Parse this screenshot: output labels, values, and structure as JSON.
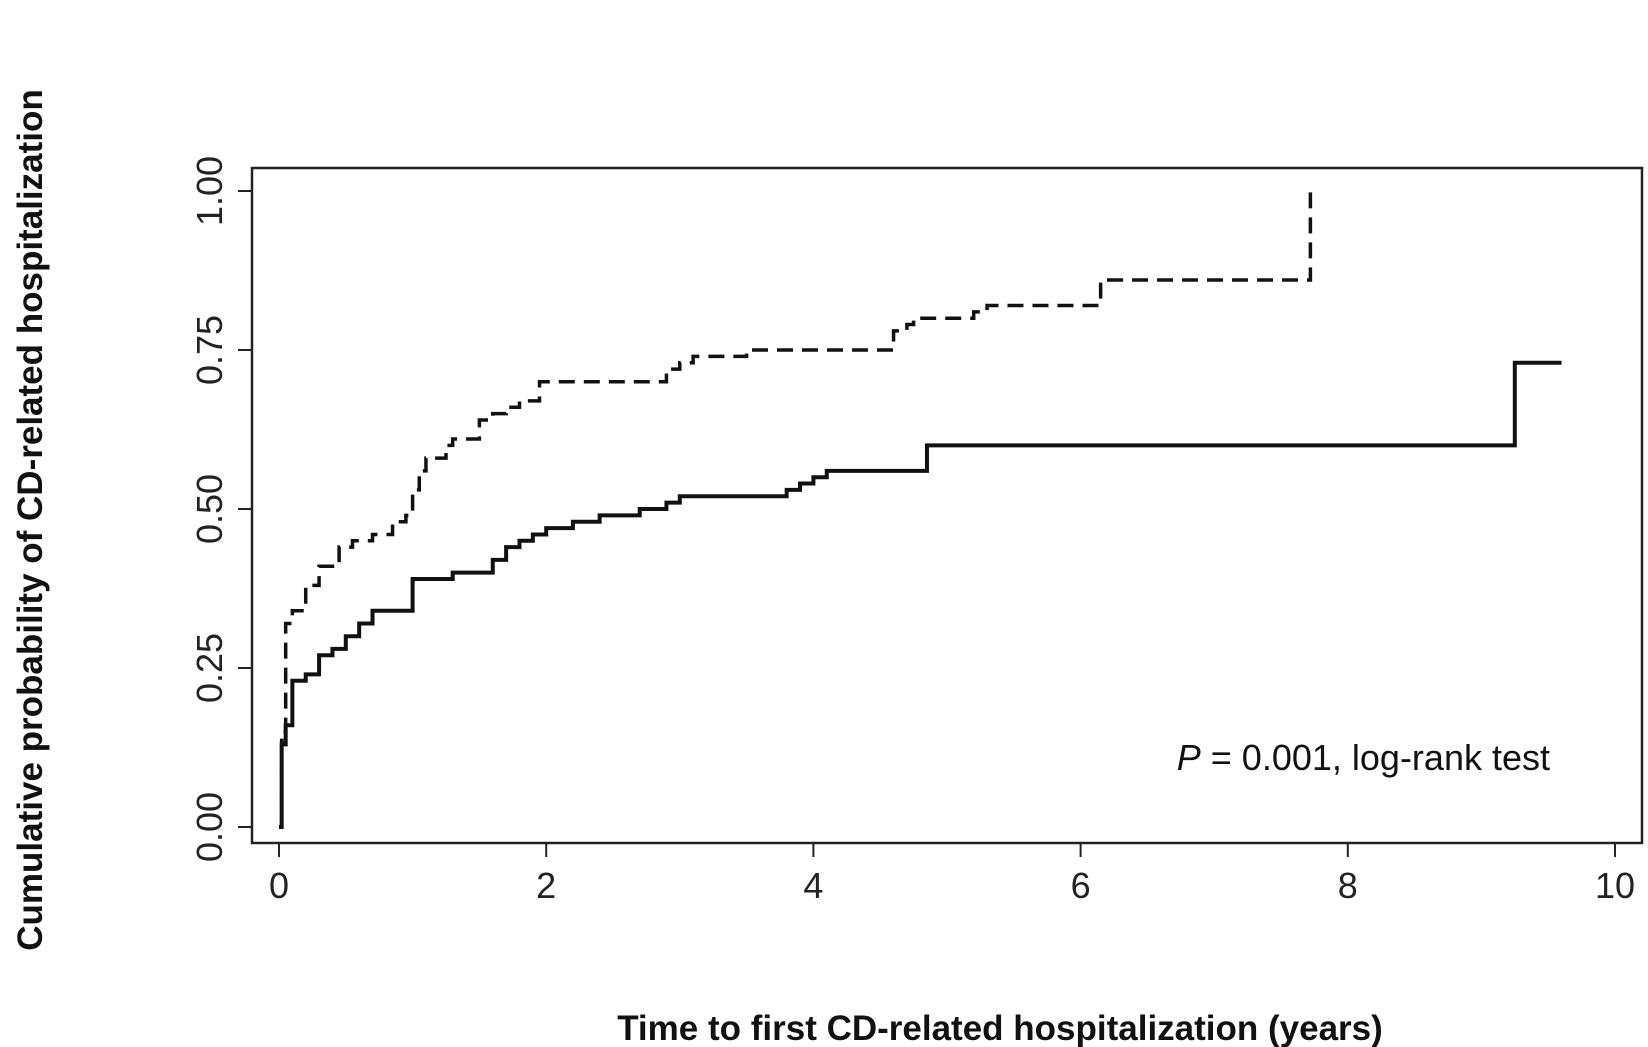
{
  "chart_data": {
    "type": "line",
    "step": true,
    "xlabel": "Time to first CD-related hospitalization (years)",
    "ylabel": "Cumulative probability of CD-related hospitalization",
    "xlim": [
      0,
      10
    ],
    "ylim": [
      0,
      1
    ],
    "x_ticks": [
      "0",
      "2",
      "4",
      "6",
      "8",
      "10"
    ],
    "y_ticks": [
      "0.00",
      "0.25",
      "0.50",
      "0.75",
      "1.00"
    ],
    "annotation": {
      "p_label": "P",
      "rest": " = 0.001, log-rank test"
    },
    "grid": false,
    "series": [
      {
        "style": "dashed",
        "x": [
          0,
          0.02,
          0.05,
          0.1,
          0.2,
          0.3,
          0.35,
          0.45,
          0.55,
          0.7,
          0.85,
          0.95,
          1.0,
          1.05,
          1.1,
          1.25,
          1.3,
          1.5,
          1.6,
          1.7,
          1.8,
          1.95,
          2.1,
          2.9,
          3.0,
          3.1,
          3.5,
          3.6,
          4.6,
          4.7,
          4.75,
          5.2,
          5.3,
          6.1,
          6.15,
          7.7,
          7.72
        ],
        "y": [
          0,
          0.15,
          0.32,
          0.34,
          0.38,
          0.41,
          0.41,
          0.44,
          0.45,
          0.46,
          0.48,
          0.49,
          0.53,
          0.56,
          0.58,
          0.6,
          0.61,
          0.64,
          0.65,
          0.66,
          0.67,
          0.7,
          0.7,
          0.72,
          0.73,
          0.74,
          0.75,
          0.75,
          0.78,
          0.79,
          0.8,
          0.81,
          0.82,
          0.82,
          0.86,
          0.86,
          1.0
        ]
      },
      {
        "style": "solid",
        "x": [
          0,
          0.02,
          0.05,
          0.1,
          0.2,
          0.3,
          0.4,
          0.5,
          0.6,
          0.7,
          0.9,
          1.0,
          1.1,
          1.3,
          1.5,
          1.6,
          1.7,
          1.8,
          1.9,
          2.0,
          2.2,
          2.4,
          2.7,
          2.9,
          3.0,
          3.1,
          3.8,
          3.9,
          4.0,
          4.1,
          4.8,
          4.85,
          9.2,
          9.25,
          9.6
        ],
        "y": [
          0,
          0.13,
          0.16,
          0.23,
          0.24,
          0.27,
          0.28,
          0.3,
          0.32,
          0.34,
          0.34,
          0.39,
          0.39,
          0.4,
          0.4,
          0.42,
          0.44,
          0.45,
          0.46,
          0.47,
          0.48,
          0.49,
          0.5,
          0.51,
          0.52,
          0.52,
          0.53,
          0.54,
          0.55,
          0.56,
          0.56,
          0.6,
          0.6,
          0.73,
          0.73
        ]
      }
    ]
  }
}
